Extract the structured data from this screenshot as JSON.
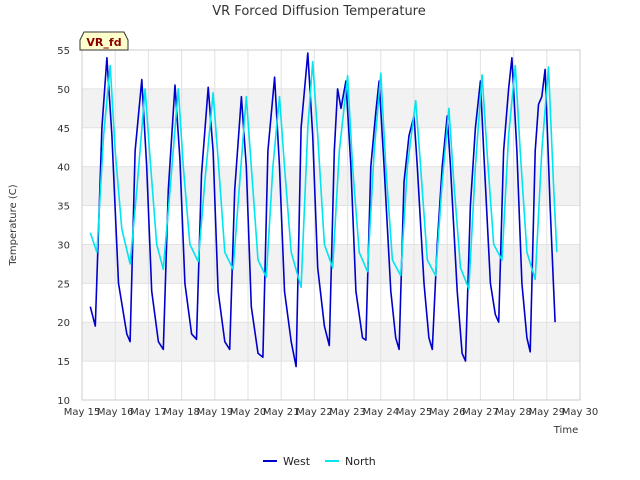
{
  "chart_data": {
    "type": "line",
    "title": "VR Forced Diffusion Temperature",
    "xlabel": "Time",
    "ylabel": "Temperature (C)",
    "badge": "VR_fd",
    "ylim": [
      10,
      55
    ],
    "yticks": [
      10,
      15,
      20,
      25,
      30,
      35,
      40,
      45,
      50,
      55
    ],
    "xlim": [
      15,
      30
    ],
    "xticks": [
      {
        "day": 15,
        "label": "May 15"
      },
      {
        "day": 16,
        "label": "May 16"
      },
      {
        "day": 17,
        "label": "May 17"
      },
      {
        "day": 18,
        "label": "May 18"
      },
      {
        "day": 19,
        "label": "May 19"
      },
      {
        "day": 20,
        "label": "May 20"
      },
      {
        "day": 21,
        "label": "May 21"
      },
      {
        "day": 22,
        "label": "May 22"
      },
      {
        "day": 23,
        "label": "May 23"
      },
      {
        "day": 24,
        "label": "May 24"
      },
      {
        "day": 25,
        "label": "May 25"
      },
      {
        "day": 26,
        "label": "May 26"
      },
      {
        "day": 27,
        "label": "May 27"
      },
      {
        "day": 28,
        "label": "May 28"
      },
      {
        "day": 29,
        "label": "May 29"
      },
      {
        "day": 30,
        "label": "May 30"
      }
    ],
    "grid": true,
    "banded_background": true,
    "legend_position": "bottom-center",
    "series": [
      {
        "name": "West",
        "color": "#0000cc",
        "points": [
          [
            15.25,
            22.0
          ],
          [
            15.4,
            19.5
          ],
          [
            15.6,
            45.0
          ],
          [
            15.75,
            54.0
          ],
          [
            15.9,
            44.0
          ],
          [
            16.1,
            25.0
          ],
          [
            16.35,
            18.5
          ],
          [
            16.45,
            17.5
          ],
          [
            16.6,
            42.0
          ],
          [
            16.8,
            51.2
          ],
          [
            16.95,
            40.0
          ],
          [
            17.1,
            24.0
          ],
          [
            17.3,
            17.5
          ],
          [
            17.45,
            16.5
          ],
          [
            17.6,
            37.0
          ],
          [
            17.8,
            50.5
          ],
          [
            17.95,
            41.0
          ],
          [
            18.1,
            25.0
          ],
          [
            18.3,
            18.5
          ],
          [
            18.45,
            17.8
          ],
          [
            18.6,
            39.0
          ],
          [
            18.8,
            50.2
          ],
          [
            18.95,
            42.0
          ],
          [
            19.1,
            24.0
          ],
          [
            19.3,
            17.5
          ],
          [
            19.45,
            16.5
          ],
          [
            19.6,
            37.0
          ],
          [
            19.8,
            49.0
          ],
          [
            19.95,
            40.0
          ],
          [
            20.1,
            22.0
          ],
          [
            20.3,
            16.0
          ],
          [
            20.45,
            15.5
          ],
          [
            20.6,
            42.0
          ],
          [
            20.8,
            51.5
          ],
          [
            20.95,
            40.0
          ],
          [
            21.1,
            24.0
          ],
          [
            21.3,
            17.5
          ],
          [
            21.45,
            14.3
          ],
          [
            21.6,
            45.0
          ],
          [
            21.8,
            54.6
          ],
          [
            21.95,
            44.0
          ],
          [
            22.1,
            27.0
          ],
          [
            22.3,
            19.5
          ],
          [
            22.45,
            17.0
          ],
          [
            22.6,
            42.0
          ],
          [
            22.7,
            50.0
          ],
          [
            22.8,
            47.5
          ],
          [
            22.95,
            51.0
          ],
          [
            23.1,
            40.0
          ],
          [
            23.25,
            24.0
          ],
          [
            23.45,
            18.0
          ],
          [
            23.55,
            17.7
          ],
          [
            23.7,
            40.0
          ],
          [
            23.85,
            47.0
          ],
          [
            23.95,
            51.0
          ],
          [
            24.1,
            40.0
          ],
          [
            24.3,
            24.0
          ],
          [
            24.45,
            18.0
          ],
          [
            24.55,
            16.5
          ],
          [
            24.7,
            38.0
          ],
          [
            24.85,
            44.0
          ],
          [
            25.0,
            46.5
          ],
          [
            25.1,
            40.0
          ],
          [
            25.3,
            25.0
          ],
          [
            25.45,
            18.0
          ],
          [
            25.55,
            16.5
          ],
          [
            25.7,
            30.0
          ],
          [
            25.85,
            40.0
          ],
          [
            26.0,
            46.5
          ],
          [
            26.1,
            40.0
          ],
          [
            26.3,
            24.0
          ],
          [
            26.45,
            16.0
          ],
          [
            26.55,
            15.0
          ],
          [
            26.7,
            35.0
          ],
          [
            26.85,
            45.0
          ],
          [
            27.0,
            51.0
          ],
          [
            27.1,
            42.0
          ],
          [
            27.3,
            25.0
          ],
          [
            27.45,
            21.0
          ],
          [
            27.55,
            20.0
          ],
          [
            27.7,
            42.0
          ],
          [
            27.85,
            50.0
          ],
          [
            27.95,
            54.0
          ],
          [
            28.1,
            42.0
          ],
          [
            28.25,
            25.0
          ],
          [
            28.4,
            18.0
          ],
          [
            28.5,
            16.2
          ],
          [
            28.65,
            42.0
          ],
          [
            28.75,
            48.0
          ],
          [
            28.85,
            49.0
          ],
          [
            28.95,
            52.5
          ],
          [
            29.1,
            35.0
          ],
          [
            29.2,
            25.0
          ],
          [
            29.25,
            20.0
          ]
        ]
      },
      {
        "name": "North",
        "color": "#00e5ee",
        "points": [
          [
            15.25,
            31.5
          ],
          [
            15.45,
            29.0
          ],
          [
            15.65,
            44.0
          ],
          [
            15.85,
            53.0
          ],
          [
            16.0,
            42.0
          ],
          [
            16.2,
            32.0
          ],
          [
            16.45,
            27.5
          ],
          [
            16.65,
            37.0
          ],
          [
            16.9,
            50.0
          ],
          [
            17.05,
            41.0
          ],
          [
            17.25,
            30.0
          ],
          [
            17.45,
            26.8
          ],
          [
            17.65,
            37.0
          ],
          [
            17.9,
            50.0
          ],
          [
            18.05,
            40.0
          ],
          [
            18.25,
            30.0
          ],
          [
            18.5,
            27.8
          ],
          [
            18.7,
            38.0
          ],
          [
            18.95,
            49.5
          ],
          [
            19.1,
            41.0
          ],
          [
            19.3,
            29.0
          ],
          [
            19.55,
            26.8
          ],
          [
            19.75,
            38.0
          ],
          [
            19.95,
            49.0
          ],
          [
            20.1,
            40.0
          ],
          [
            20.3,
            28.0
          ],
          [
            20.55,
            25.8
          ],
          [
            20.75,
            40.0
          ],
          [
            20.95,
            49.0
          ],
          [
            21.1,
            40.0
          ],
          [
            21.3,
            29.0
          ],
          [
            21.6,
            24.5
          ],
          [
            21.8,
            45.0
          ],
          [
            21.95,
            53.5
          ],
          [
            22.1,
            44.0
          ],
          [
            22.3,
            30.0
          ],
          [
            22.55,
            27.0
          ],
          [
            22.75,
            42.0
          ],
          [
            23.0,
            51.7
          ],
          [
            23.15,
            40.0
          ],
          [
            23.35,
            29.0
          ],
          [
            23.6,
            26.5
          ],
          [
            23.8,
            42.0
          ],
          [
            24.0,
            52.0
          ],
          [
            24.15,
            40.0
          ],
          [
            24.35,
            28.0
          ],
          [
            24.6,
            26.0
          ],
          [
            24.8,
            40.0
          ],
          [
            25.05,
            48.5
          ],
          [
            25.2,
            40.0
          ],
          [
            25.4,
            28.0
          ],
          [
            25.65,
            26.0
          ],
          [
            25.85,
            38.0
          ],
          [
            26.05,
            47.5
          ],
          [
            26.2,
            38.0
          ],
          [
            26.4,
            27.0
          ],
          [
            26.65,
            24.3
          ],
          [
            26.85,
            40.0
          ],
          [
            27.05,
            51.8
          ],
          [
            27.2,
            42.0
          ],
          [
            27.4,
            30.0
          ],
          [
            27.65,
            28.0
          ],
          [
            27.85,
            44.0
          ],
          [
            28.05,
            53.0
          ],
          [
            28.2,
            42.0
          ],
          [
            28.4,
            29.0
          ],
          [
            28.65,
            25.5
          ],
          [
            28.85,
            42.0
          ],
          [
            29.05,
            52.8
          ],
          [
            29.2,
            38.0
          ],
          [
            29.3,
            29.0
          ]
        ]
      }
    ]
  }
}
